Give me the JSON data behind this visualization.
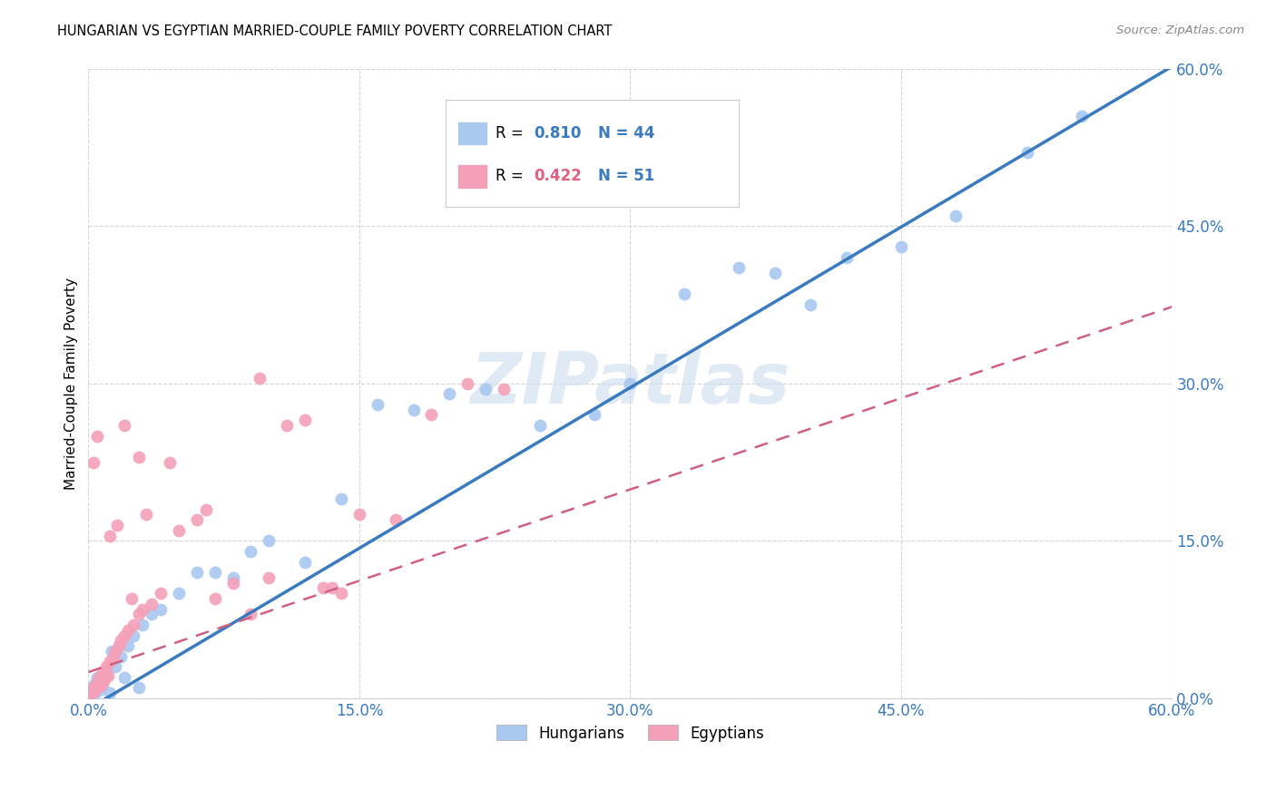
{
  "title": "HUNGARIAN VS EGYPTIAN MARRIED-COUPLE FAMILY POVERTY CORRELATION CHART",
  "source": "Source: ZipAtlas.com",
  "ylabel": "Married-Couple Family Poverty",
  "ytick_values": [
    0.0,
    15.0,
    30.0,
    45.0,
    60.0
  ],
  "xtick_values": [
    0.0,
    15.0,
    30.0,
    45.0,
    60.0
  ],
  "xlim": [
    0,
    60
  ],
  "ylim": [
    0,
    60
  ],
  "watermark": "ZIPatlas",
  "hungarian_color": "#a8c8f0",
  "egyptian_color": "#f4a0b8",
  "hungarian_line_color": "#3a7abf",
  "egyptian_line_color": "#d06080",
  "R_hungarian": 0.81,
  "N_hungarian": 44,
  "R_egyptian": 0.422,
  "N_egyptian": 51,
  "hungarian_points_x": [
    0.1,
    0.2,
    0.3,
    0.4,
    0.5,
    0.6,
    0.8,
    1.0,
    1.2,
    1.5,
    1.8,
    2.0,
    2.2,
    2.5,
    3.0,
    3.5,
    4.0,
    5.0,
    6.0,
    7.0,
    8.0,
    10.0,
    12.0,
    14.0,
    16.0,
    18.0,
    20.0,
    22.0,
    25.0,
    28.0,
    30.0,
    33.0,
    36.0,
    38.0,
    40.0,
    42.0,
    45.0,
    48.0,
    52.0,
    55.0,
    0.7,
    1.3,
    2.8,
    9.0
  ],
  "hungarian_points_y": [
    0.5,
    1.0,
    0.3,
    1.5,
    2.0,
    0.8,
    1.2,
    2.5,
    0.5,
    3.0,
    4.0,
    2.0,
    5.0,
    6.0,
    7.0,
    8.0,
    8.5,
    10.0,
    12.0,
    12.0,
    11.5,
    15.0,
    13.0,
    19.0,
    28.0,
    27.5,
    29.0,
    29.5,
    26.0,
    27.0,
    30.0,
    38.5,
    41.0,
    40.5,
    37.5,
    42.0,
    43.0,
    46.0,
    52.0,
    55.5,
    1.8,
    4.5,
    1.0,
    14.0
  ],
  "egyptian_points_x": [
    0.1,
    0.2,
    0.3,
    0.4,
    0.5,
    0.6,
    0.7,
    0.8,
    0.9,
    1.0,
    1.1,
    1.2,
    1.4,
    1.5,
    1.7,
    1.8,
    2.0,
    2.2,
    2.5,
    2.8,
    3.0,
    3.5,
    4.0,
    5.0,
    6.0,
    7.0,
    8.0,
    9.0,
    10.0,
    11.0,
    12.0,
    13.0,
    14.0,
    15.0,
    17.0,
    19.0,
    21.0,
    23.0,
    0.3,
    0.5,
    0.8,
    1.2,
    1.6,
    2.0,
    2.4,
    2.8,
    3.2,
    4.5,
    6.5,
    9.5,
    13.5
  ],
  "egyptian_points_y": [
    0.3,
    0.5,
    1.0,
    0.8,
    1.5,
    2.0,
    1.2,
    2.5,
    1.8,
    3.0,
    2.2,
    3.5,
    4.0,
    4.5,
    5.0,
    5.5,
    6.0,
    6.5,
    7.0,
    8.0,
    8.5,
    9.0,
    10.0,
    16.0,
    17.0,
    9.5,
    11.0,
    8.0,
    11.5,
    26.0,
    26.5,
    10.5,
    10.0,
    17.5,
    17.0,
    27.0,
    30.0,
    29.5,
    22.5,
    25.0,
    1.5,
    15.5,
    16.5,
    26.0,
    9.5,
    23.0,
    17.5,
    22.5,
    18.0,
    30.5,
    10.5
  ]
}
